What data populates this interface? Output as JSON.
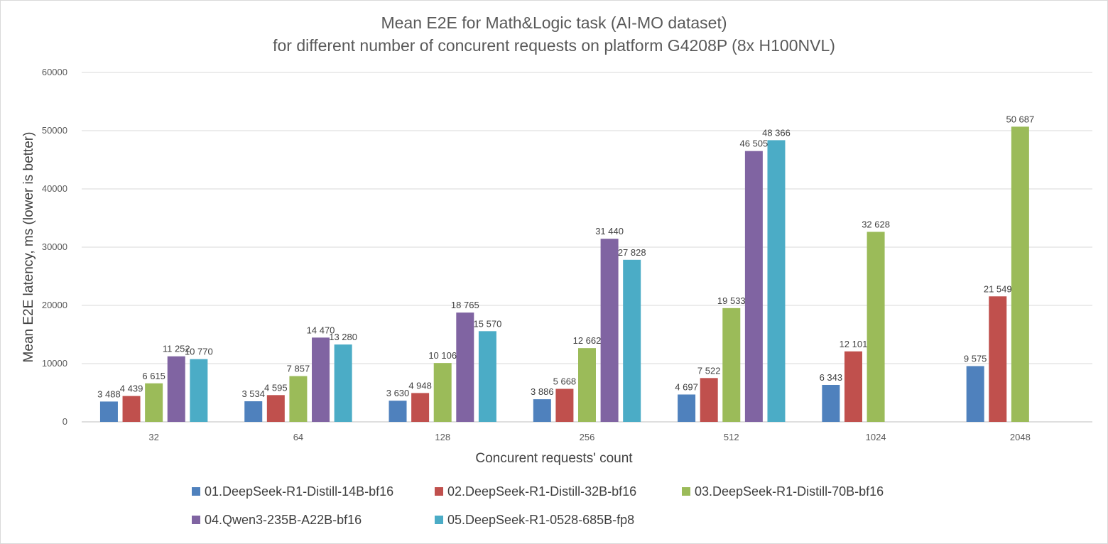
{
  "chart_data": {
    "type": "bar",
    "title": "Mean E2E for Math&Logic task (AI-MO dataset)",
    "subtitle": "for different number of concurent requests on platform G4208P (8x H100NVL)",
    "xlabel": "Concurent requests' count",
    "ylabel": "Mean E2E latency, ms (lower is better)",
    "categories": [
      "32",
      "64",
      "128",
      "256",
      "512",
      "1024",
      "2048"
    ],
    "ylim": [
      0,
      60000
    ],
    "yticks": [
      0,
      10000,
      20000,
      30000,
      40000,
      50000,
      60000
    ],
    "ytick_labels": [
      "0",
      "10000",
      "20000",
      "30000",
      "40000",
      "50000",
      "60000"
    ],
    "grid": true,
    "legend_position": "bottom",
    "series": [
      {
        "name": "01.DeepSeek-R1-Distill-14B-bf16",
        "color": "#4f81bd",
        "values": [
          3488,
          3534,
          3630,
          3886,
          4697,
          6343,
          9575
        ],
        "labels": [
          "3 488",
          "3 534",
          "3 630",
          "3 886",
          "4 697",
          "6 343",
          "9 575"
        ]
      },
      {
        "name": "02.DeepSeek-R1-Distill-32B-bf16",
        "color": "#c0504d",
        "values": [
          4439,
          4595,
          4948,
          5668,
          7522,
          12101,
          21549
        ],
        "labels": [
          "4 439",
          "4 595",
          "4 948",
          "5 668",
          "7 522",
          "12 101",
          "21 549"
        ]
      },
      {
        "name": "03.DeepSeek-R1-Distill-70B-bf16",
        "color": "#9bbb59",
        "values": [
          6615,
          7857,
          10106,
          12662,
          19533,
          32628,
          50687
        ],
        "labels": [
          "6 615",
          "7 857",
          "10 106",
          "12 662",
          "19 533",
          "32 628",
          "50 687"
        ]
      },
      {
        "name": "04.Qwen3-235B-A22B-bf16",
        "color": "#8064a2",
        "values": [
          11252,
          14470,
          18765,
          31440,
          46505,
          null,
          null
        ],
        "labels": [
          "11 252",
          "14 470",
          "18 765",
          "31 440",
          "46 505",
          null,
          null
        ]
      },
      {
        "name": "05.DeepSeek-R1-0528-685B-fp8",
        "color": "#4bacc6",
        "values": [
          10770,
          13280,
          15570,
          27828,
          48366,
          null,
          null
        ],
        "labels": [
          "10 770",
          "13 280",
          "15 570",
          "27 828",
          "48 366",
          null,
          null
        ]
      }
    ]
  }
}
